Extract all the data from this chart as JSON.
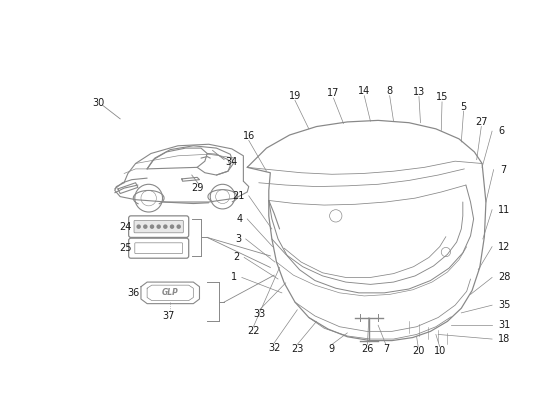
{
  "bg_color": "#ffffff",
  "line_color": "#888888",
  "number_color": "#1a1a1a",
  "fig_width": 5.5,
  "fig_height": 4.0,
  "dpi": 100,
  "lw": 0.8,
  "fs": 7.0
}
